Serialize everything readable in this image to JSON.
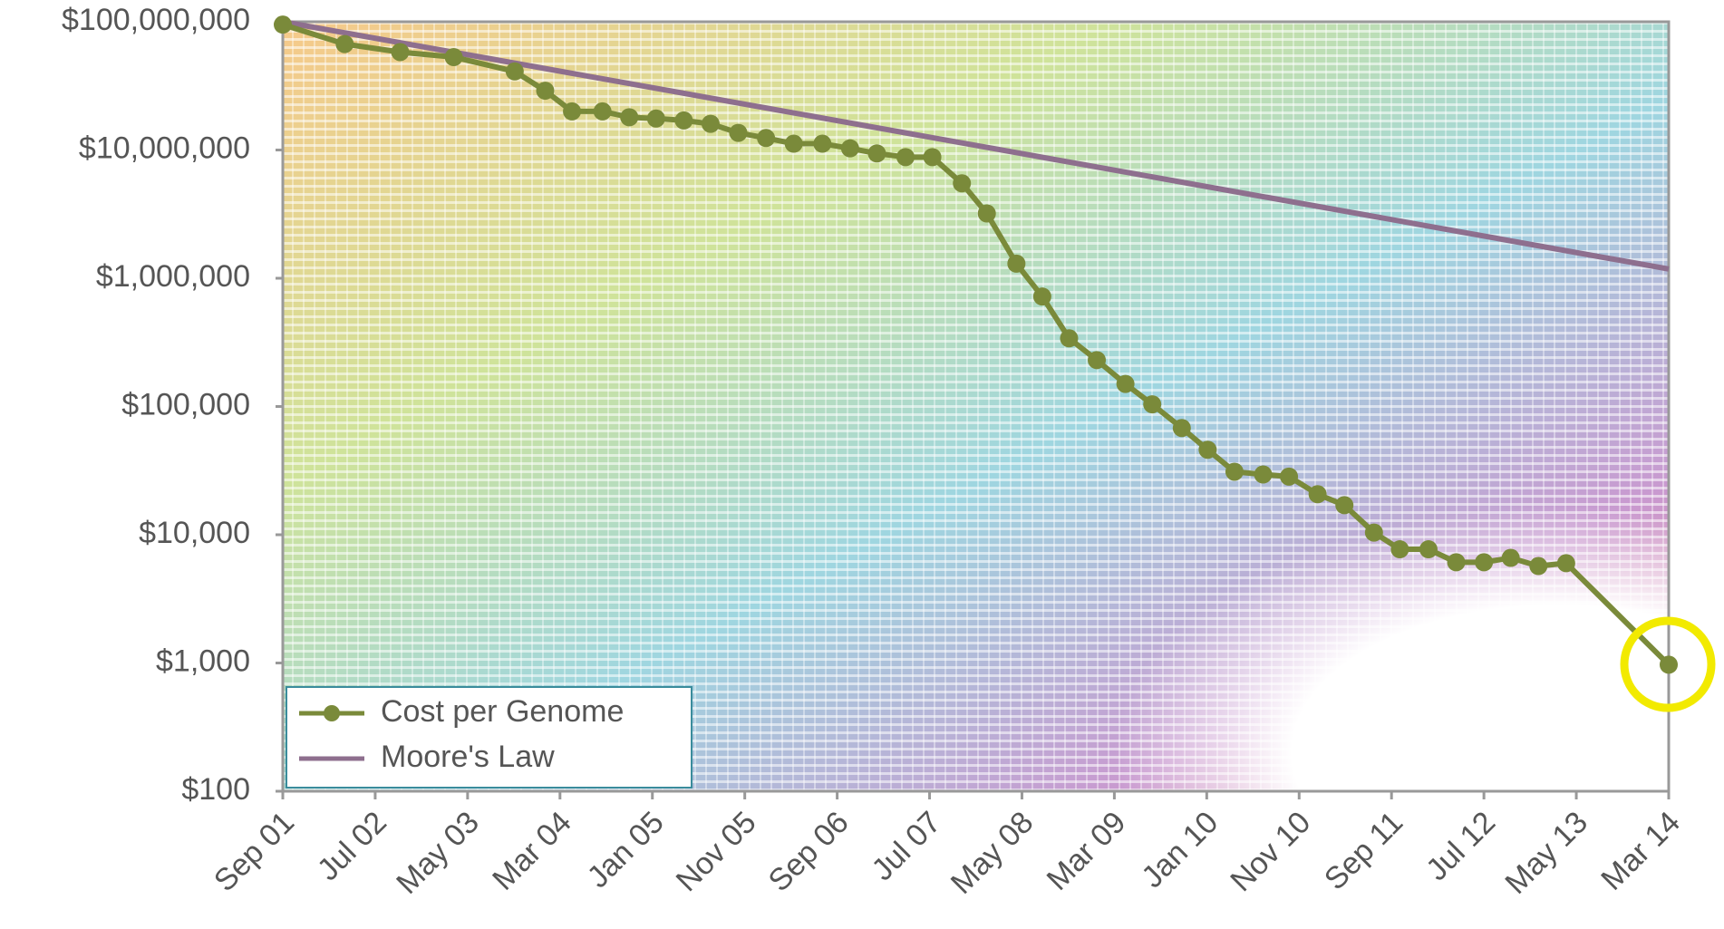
{
  "chart_data": {
    "type": "line",
    "categories": [
      "Sep 01",
      "Jul 02",
      "May 03",
      "Mar 04",
      "Jan 05",
      "Nov 05",
      "Sep 06",
      "Jul 07",
      "May 08",
      "Mar 09",
      "Jan 10",
      "Nov 10",
      "Sep 11",
      "Jul 12",
      "May 13",
      "Mar 14"
    ],
    "series": [
      {
        "name": "Cost per Genome",
        "color": "#7a8a3a",
        "marker": "circle",
        "x": [
          0,
          0.67,
          1.27,
          1.85,
          2.51,
          2.84,
          3.13,
          3.46,
          3.75,
          4.04,
          4.34,
          4.63,
          4.93,
          5.23,
          5.53,
          5.84,
          6.14,
          6.43,
          6.74,
          7.03,
          7.35,
          7.62,
          7.94,
          8.22,
          8.51,
          8.81,
          9.12,
          9.41,
          9.73,
          10.01,
          10.3,
          10.61,
          10.89,
          11.2,
          11.49,
          11.81,
          12.09,
          12.4,
          12.7,
          13.0,
          13.29,
          13.59,
          13.89,
          15
        ],
        "values": [
          95000000,
          67000000,
          58000000,
          53000000,
          41000000,
          29000000,
          20000000,
          20000000,
          18000000,
          17600000,
          17000000,
          16000000,
          13600000,
          12400000,
          11200000,
          11200000,
          10300000,
          9400000,
          8800000,
          8800000,
          5500000,
          3200000,
          1300000,
          720000,
          340000,
          230000,
          150000,
          104000,
          68000,
          46000,
          31000,
          29500,
          28400,
          20700,
          17000,
          10400,
          7700,
          7700,
          6100,
          6100,
          6600,
          5700,
          6000,
          970
        ]
      },
      {
        "name": "Moore's Law",
        "color": "#8e6f8e",
        "x": [
          0,
          15
        ],
        "values": [
          100000000,
          1180000
        ]
      }
    ],
    "yscale": "log",
    "ylim": [
      100,
      100000000
    ],
    "yticks": [
      {
        "value": 100,
        "label": "$100"
      },
      {
        "value": 1000,
        "label": "$1,000"
      },
      {
        "value": 10000,
        "label": "$10,000"
      },
      {
        "value": 100000,
        "label": "$100,000"
      },
      {
        "value": 1000000,
        "label": "$1,000,000"
      },
      {
        "value": 10000000,
        "label": "$10,000,000"
      },
      {
        "value": 100000000,
        "label": "$100,000,000"
      }
    ],
    "legend": "lower left",
    "grid": false
  }
}
